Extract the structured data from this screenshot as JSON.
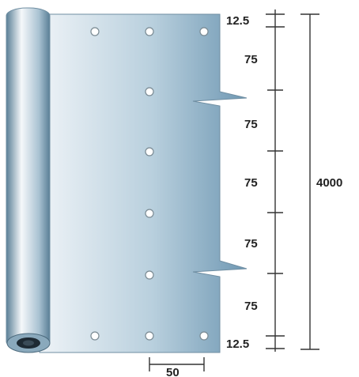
{
  "diagram": {
    "dimensions": {
      "top_margin": "12.5",
      "spacing_1": "75",
      "spacing_2": "75",
      "spacing_3": "75",
      "spacing_4": "75",
      "spacing_5": "75",
      "bottom_margin": "12.5",
      "total_length": "4000",
      "horizontal_spacing": "50"
    },
    "colors": {
      "sheet_light": "#eef3f7",
      "sheet_mid": "#b8cfdd",
      "sheet_dark": "#6f98b3",
      "roll_highlight": "#f5f8fa",
      "roll_shadow": "#5a7f96",
      "roll_core": "#1e2a33",
      "dimension_line": "#333333"
    }
  }
}
